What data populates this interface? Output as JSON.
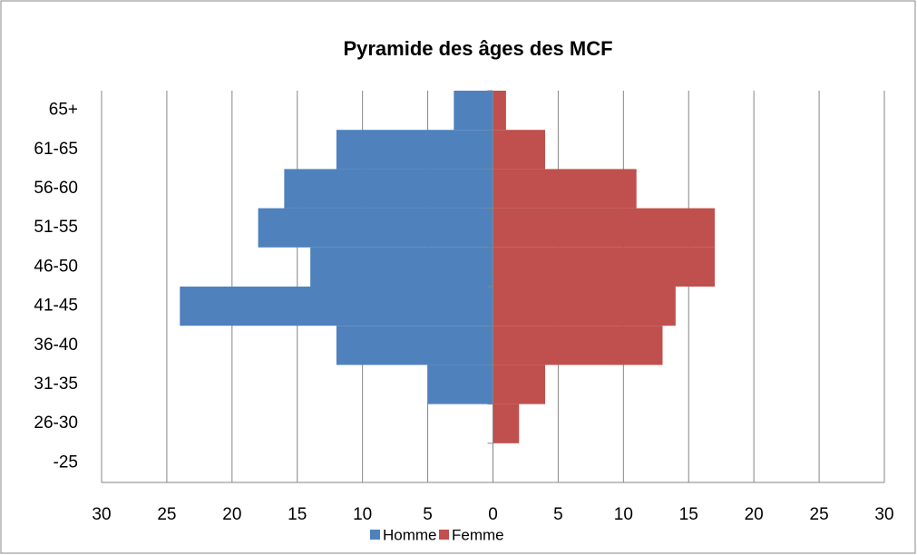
{
  "chart_data": {
    "type": "pyramid",
    "title": "Pyramide des âges des MCF",
    "categories": [
      "65+",
      "61-65",
      "56-60",
      "51-55",
      "46-50",
      "41-45",
      "36-40",
      "31-35",
      "26-30",
      "-25"
    ],
    "series": [
      {
        "name": "Homme",
        "color": "#4f81bd",
        "values": [
          -3,
          -12,
          -16,
          -18,
          -14,
          -24,
          -12,
          -5,
          0,
          0
        ]
      },
      {
        "name": "Femme",
        "color": "#c0504d",
        "values": [
          1,
          4,
          11,
          17,
          17,
          14,
          13,
          4,
          2,
          0
        ]
      }
    ],
    "xlim": [
      -30,
      30
    ],
    "xticks": [
      {
        "value": -30,
        "label": "30"
      },
      {
        "value": -25,
        "label": "25"
      },
      {
        "value": -20,
        "label": "20"
      },
      {
        "value": -15,
        "label": "15"
      },
      {
        "value": -10,
        "label": "10"
      },
      {
        "value": -5,
        "label": "5"
      },
      0,
      5,
      10,
      15,
      20,
      25,
      30
    ],
    "grid": true,
    "legend": "bottom"
  }
}
